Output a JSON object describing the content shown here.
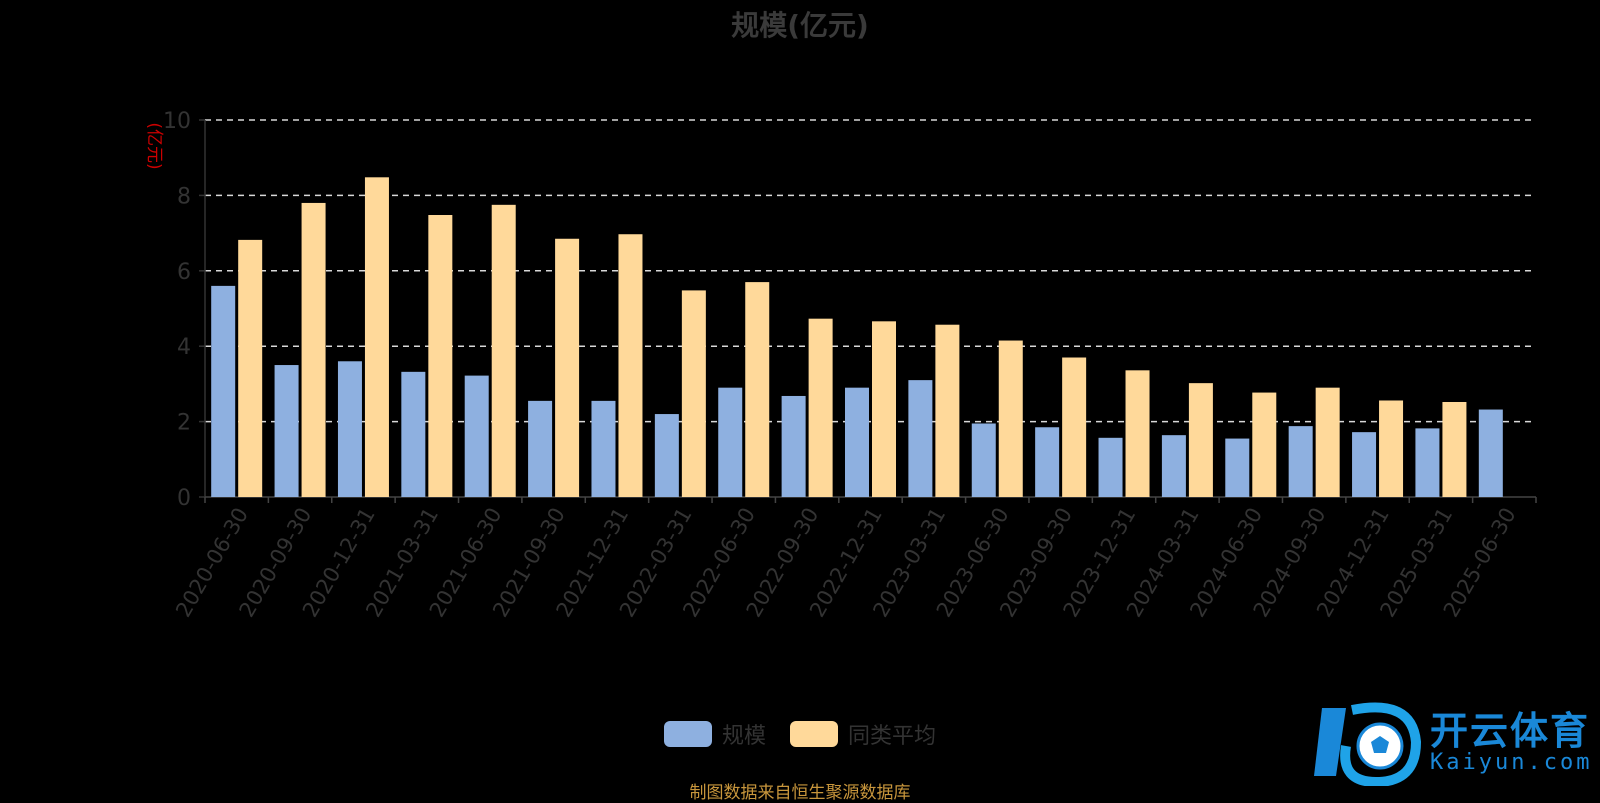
{
  "chart_data": {
    "type": "bar",
    "title": "规模(亿元)",
    "ylabel": "(亿元)",
    "ylim": [
      0,
      10
    ],
    "yticks": [
      0,
      2,
      4,
      6,
      8,
      10
    ],
    "grid": true,
    "legend_position": "bottom-center",
    "categories": [
      "2020-06-30",
      "2020-09-30",
      "2020-12-31",
      "2021-03-31",
      "2021-06-30",
      "2021-09-30",
      "2021-12-31",
      "2022-03-31",
      "2022-06-30",
      "2022-09-30",
      "2022-12-31",
      "2023-03-31",
      "2023-06-30",
      "2023-09-30",
      "2023-12-31",
      "2024-03-31",
      "2024-06-30",
      "2024-09-30",
      "2024-12-31",
      "2025-03-31",
      "2025-06-30"
    ],
    "series": [
      {
        "name": "规模",
        "color": "#8eb0e0",
        "values": [
          5.6,
          3.5,
          3.6,
          3.32,
          3.22,
          2.55,
          2.55,
          2.2,
          2.9,
          2.68,
          2.9,
          3.1,
          1.95,
          1.85,
          1.57,
          1.64,
          1.55,
          1.88,
          1.72,
          1.82,
          2.32
        ]
      },
      {
        "name": "同类平均",
        "color": "#ffd99a",
        "values": [
          6.82,
          7.8,
          8.48,
          7.48,
          7.75,
          6.85,
          6.97,
          5.48,
          5.7,
          4.73,
          4.66,
          4.57,
          4.15,
          3.7,
          3.36,
          3.02,
          2.77,
          2.9,
          2.56,
          2.52,
          null
        ]
      }
    ]
  },
  "source_note": "制图数据来自恒生聚源数据库",
  "watermark": {
    "text": "开云体育",
    "sub": "Kaiyun.com"
  }
}
